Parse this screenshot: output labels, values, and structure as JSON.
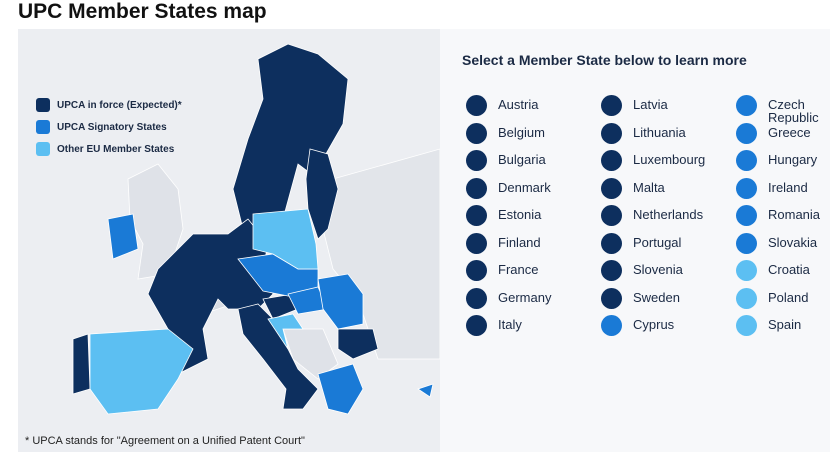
{
  "header": {
    "title": "UPC Member States map"
  },
  "legend": [
    {
      "label": "UPCA in force (Expected)*",
      "color": "#0d2f5e"
    },
    {
      "label": "UPCA Signatory States",
      "color": "#1a7ad6"
    },
    {
      "label": "Other EU Member States",
      "color": "#5cbff2"
    }
  ],
  "panel": {
    "heading": "Select a Member State below to learn more"
  },
  "states": [
    {
      "name": "Austria",
      "color": "#0d2f5e"
    },
    {
      "name": "Belgium",
      "color": "#0d2f5e"
    },
    {
      "name": "Bulgaria",
      "color": "#0d2f5e"
    },
    {
      "name": "Denmark",
      "color": "#0d2f5e"
    },
    {
      "name": "Estonia",
      "color": "#0d2f5e"
    },
    {
      "name": "Finland",
      "color": "#0d2f5e"
    },
    {
      "name": "France",
      "color": "#0d2f5e"
    },
    {
      "name": "Germany",
      "color": "#0d2f5e"
    },
    {
      "name": "Italy",
      "color": "#0d2f5e"
    },
    {
      "name": "Latvia",
      "color": "#0d2f5e"
    },
    {
      "name": "Lithuania",
      "color": "#0d2f5e"
    },
    {
      "name": "Luxembourg",
      "color": "#0d2f5e"
    },
    {
      "name": "Malta",
      "color": "#0d2f5e"
    },
    {
      "name": "Netherlands",
      "color": "#0d2f5e"
    },
    {
      "name": "Portugal",
      "color": "#0d2f5e"
    },
    {
      "name": "Slovenia",
      "color": "#0d2f5e"
    },
    {
      "name": "Sweden",
      "color": "#0d2f5e"
    },
    {
      "name": "Cyprus",
      "color": "#1a7ad6"
    },
    {
      "name": "Czech Republic",
      "color": "#1a7ad6"
    },
    {
      "name": "Greece",
      "color": "#1a7ad6"
    },
    {
      "name": "Hungary",
      "color": "#1a7ad6"
    },
    {
      "name": "Ireland",
      "color": "#1a7ad6"
    },
    {
      "name": "Romania",
      "color": "#1a7ad6"
    },
    {
      "name": "Slovakia",
      "color": "#1a7ad6"
    },
    {
      "name": "Croatia",
      "color": "#5cbff2"
    },
    {
      "name": "Poland",
      "color": "#5cbff2"
    },
    {
      "name": "Spain",
      "color": "#5cbff2"
    }
  ],
  "footnote": "* UPCA stands for \"Agreement on a Unified Patent Court\""
}
